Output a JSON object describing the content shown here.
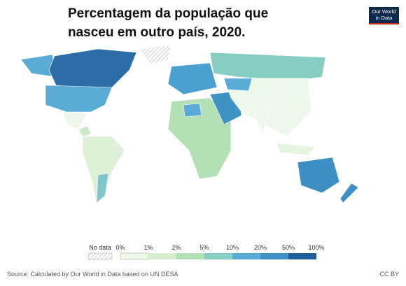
{
  "header": {
    "title_line1": "Percentagem da população que",
    "title_line2": "nasceu em outro país, 2020.",
    "logo_line1": "Our World",
    "logo_line2": "in Data"
  },
  "legend": {
    "no_data": "No data",
    "labels": [
      "0%",
      "1%",
      "2%",
      "5%",
      "10%",
      "20%",
      "50%",
      "100%"
    ]
  },
  "footer": {
    "source": "Source: Calculated by Our World in Data based on UN DESA",
    "license": "CC BY"
  }
}
